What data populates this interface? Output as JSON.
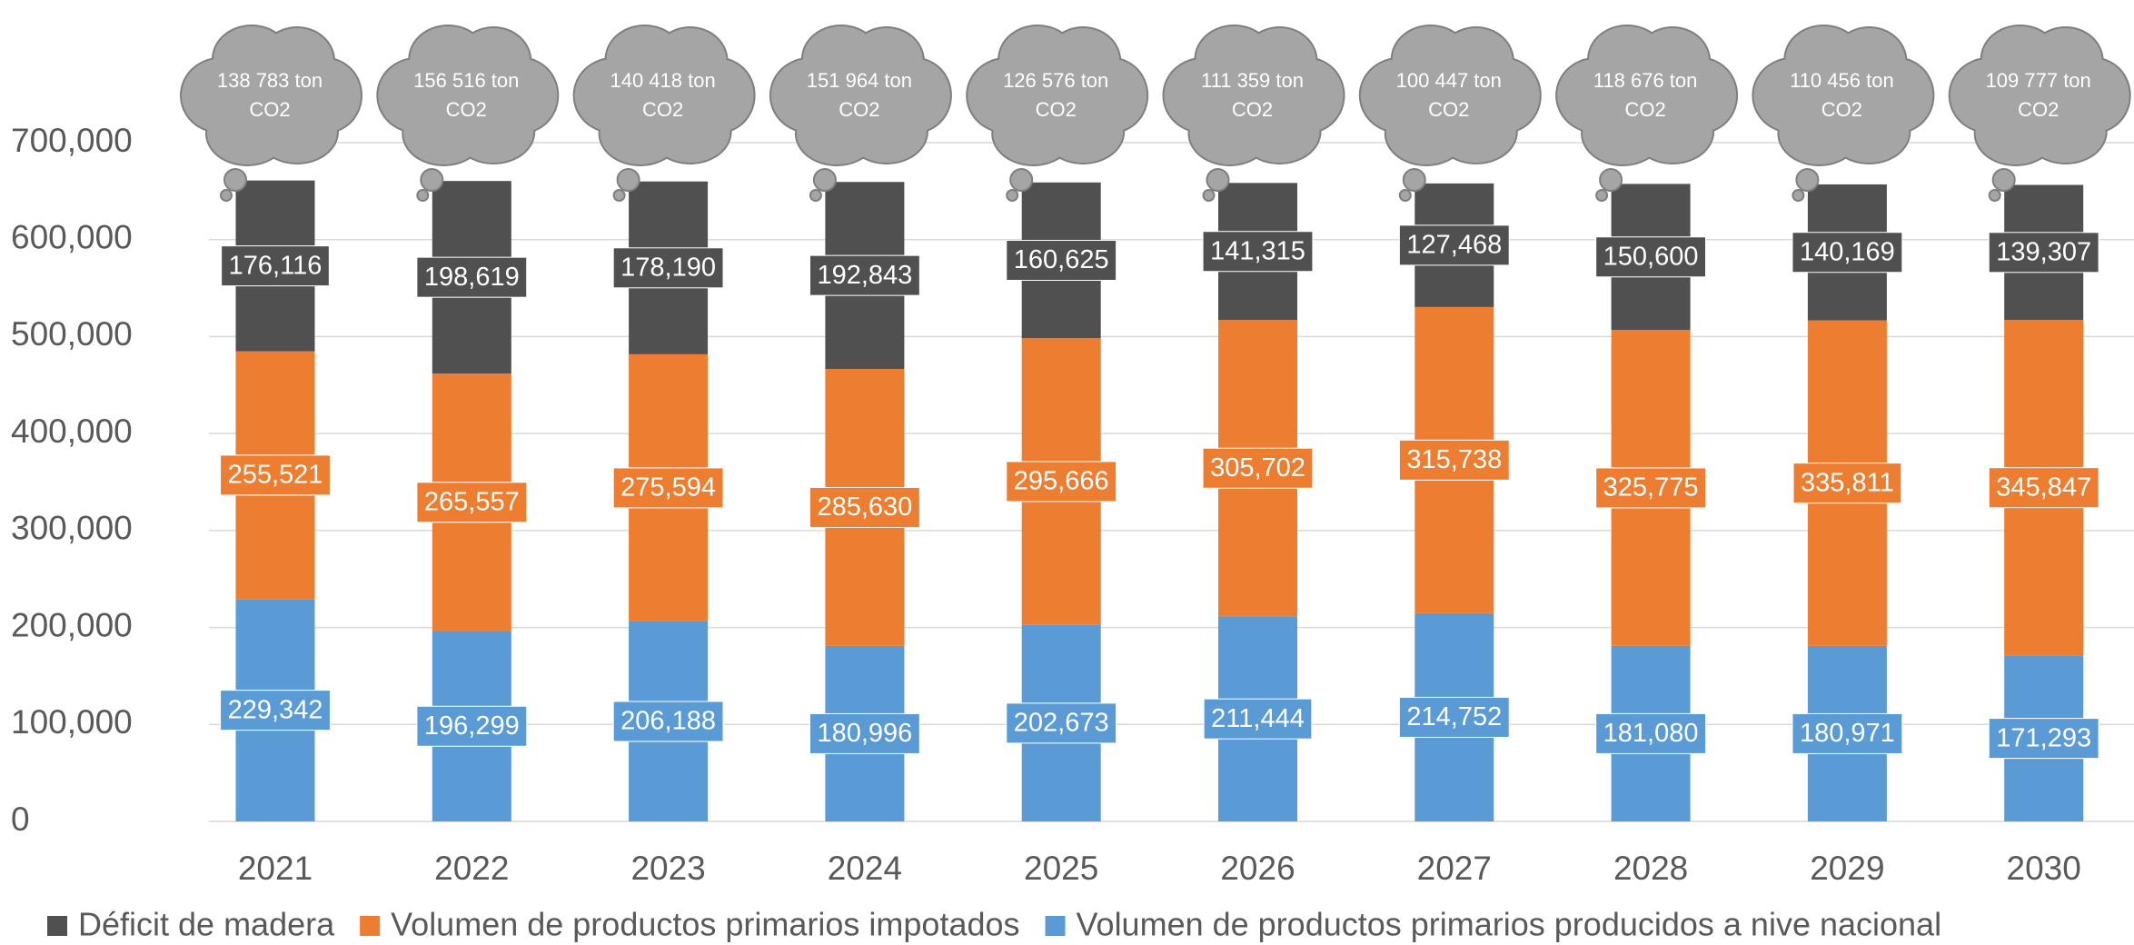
{
  "chart_data": {
    "type": "stacked_bar",
    "categories": [
      "2021",
      "2022",
      "2023",
      "2024",
      "2025",
      "2026",
      "2027",
      "2028",
      "2029",
      "2030"
    ],
    "series": [
      {
        "name": "Volumen de productos primarios producidos a nive nacional",
        "color": "#5b9bd5",
        "values": [
          229342,
          196299,
          206188,
          180996,
          202673,
          211444,
          214752,
          181080,
          180971,
          171293
        ],
        "value_labels": [
          "229,342",
          "196,299",
          "206,188",
          "180,996",
          "202,673",
          "211,444",
          "214,752",
          "181,080",
          "180,971",
          "171,293"
        ]
      },
      {
        "name": "Volumen de productos primarios impotados",
        "color": "#ed7d31",
        "values": [
          255521,
          265557,
          275594,
          285630,
          295666,
          305702,
          315738,
          325775,
          335811,
          345847
        ],
        "value_labels": [
          "255,521",
          "265,557",
          "275,594",
          "285,630",
          "295,666",
          "305,702",
          "315,738",
          "325,775",
          "335,811",
          "345,847"
        ]
      },
      {
        "name": "Déficit de madera",
        "color": "#505050",
        "values": [
          176116,
          198619,
          178190,
          192843,
          160625,
          141315,
          127468,
          150600,
          140169,
          139307
        ],
        "value_labels": [
          "176,116",
          "198,619",
          "178,190",
          "192,843",
          "160,625",
          "141,315",
          "127,468",
          "150,600",
          "140,169",
          "139,307"
        ]
      }
    ],
    "cloud_labels": [
      "138 783 ton CO2",
      "156 516 ton CO2",
      "140 418 ton CO2",
      "151 964 ton CO2",
      "126 576 ton CO2",
      "111 359 ton CO2",
      "100 447 ton CO2",
      "118 676 ton CO2",
      "110 456 ton CO2",
      "109 777 ton CO2"
    ],
    "cloud_color": "#a5a5a5",
    "ylim": [
      0,
      700000
    ],
    "yticks": [
      0,
      {
        "value": 100000,
        "label": "100,000"
      },
      {
        "value": 200000,
        "label": "200,000"
      },
      {
        "value": 300000,
        "label": "300,000"
      },
      {
        "value": 400000,
        "label": "400,000"
      },
      {
        "value": 500000,
        "label": "500,000"
      },
      {
        "value": 600000,
        "label": "600,000"
      },
      {
        "value": 700000,
        "label": "700,000"
      }
    ],
    "grid": true
  }
}
